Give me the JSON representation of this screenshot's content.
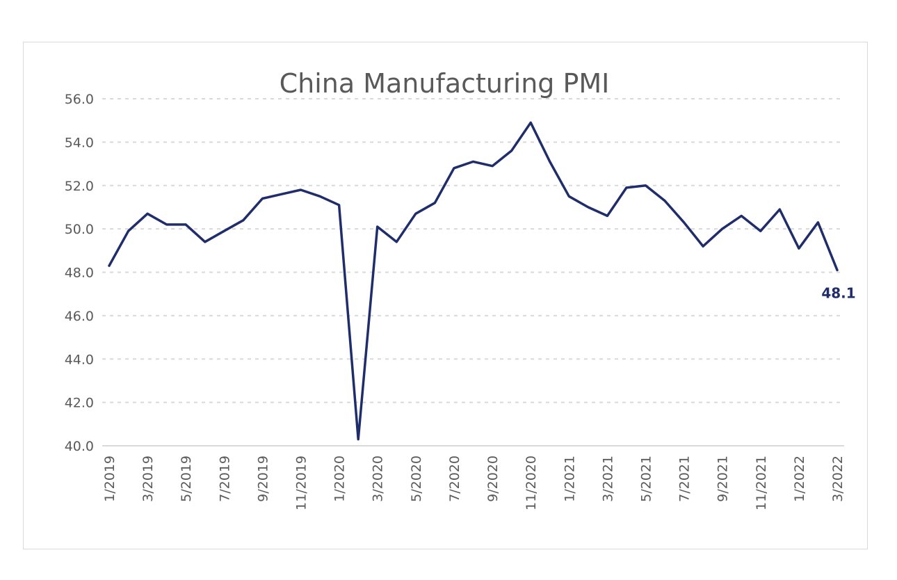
{
  "chart_data": {
    "type": "line",
    "title": "China Manufacturing PMI",
    "xlabel": "",
    "ylabel": "",
    "ylim": [
      40,
      56
    ],
    "y_ticks": [
      "40.0",
      "42.0",
      "44.0",
      "46.0",
      "48.0",
      "50.0",
      "52.0",
      "54.0",
      "56.0"
    ],
    "grid": true,
    "legend": "none",
    "x": [
      "1/2019",
      "2/2019",
      "3/2019",
      "4/2019",
      "5/2019",
      "6/2019",
      "7/2019",
      "8/2019",
      "9/2019",
      "10/2019",
      "11/2019",
      "12/2019",
      "1/2020",
      "2/2020",
      "3/2020",
      "4/2020",
      "5/2020",
      "6/2020",
      "7/2020",
      "8/2020",
      "9/2020",
      "10/2020",
      "11/2020",
      "12/2020",
      "1/2021",
      "2/2021",
      "3/2021",
      "4/2021",
      "5/2021",
      "6/2021",
      "7/2021",
      "8/2021",
      "9/2021",
      "10/2021",
      "11/2021",
      "12/2021",
      "1/2022",
      "2/2022",
      "3/2022"
    ],
    "x_tick_labels": [
      "1/2019",
      "3/2019",
      "5/2019",
      "7/2019",
      "9/2019",
      "11/2019",
      "1/2020",
      "3/2020",
      "5/2020",
      "7/2020",
      "9/2020",
      "11/2020",
      "1/2021",
      "3/2021",
      "5/2021",
      "7/2021",
      "9/2021",
      "11/2021",
      "1/2022",
      "3/2022"
    ],
    "series": [
      {
        "name": "China Manufacturing PMI",
        "color": "#1f2d6b",
        "values": [
          48.3,
          49.9,
          50.7,
          50.2,
          50.2,
          49.4,
          49.9,
          50.4,
          51.4,
          51.6,
          51.8,
          51.5,
          51.1,
          40.3,
          50.1,
          49.4,
          50.7,
          51.2,
          52.8,
          53.1,
          52.9,
          53.6,
          54.9,
          53.1,
          51.5,
          51.0,
          50.6,
          51.9,
          52.0,
          51.3,
          50.3,
          49.2,
          50.0,
          50.6,
          49.9,
          50.9,
          49.1,
          50.3,
          48.1
        ]
      }
    ],
    "annotations": [
      {
        "text": "48.1",
        "series": 0,
        "index": 38,
        "color": "#1f2d6b"
      }
    ]
  }
}
